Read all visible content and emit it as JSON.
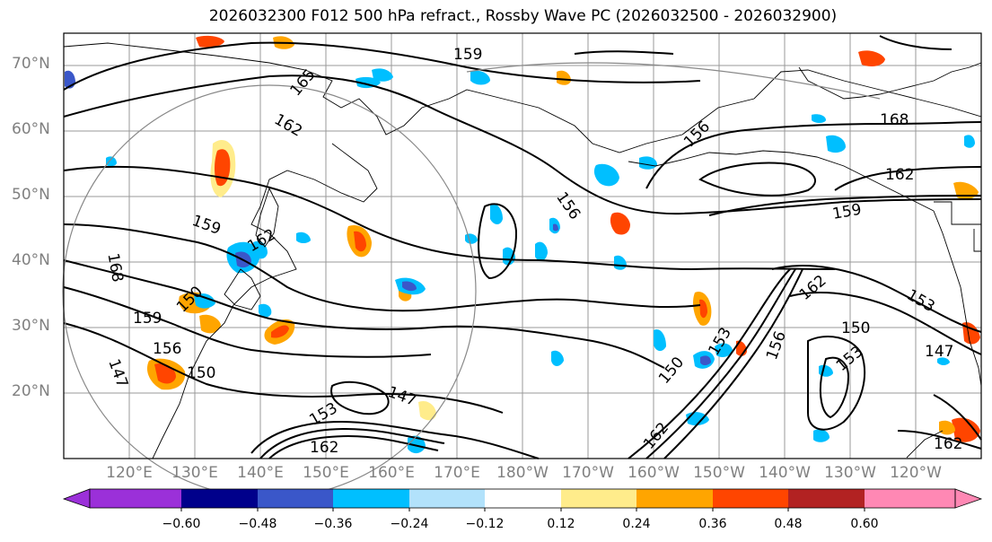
{
  "title": "2026032300 F012 500 hPa refract., Rossby Wave PC (2026032500 - 2026032900)",
  "lat_labels": [
    "70°N",
    "60°N",
    "50°N",
    "40°N",
    "30°N",
    "20°N"
  ],
  "lon_labels": [
    "120°E",
    "130°E",
    "140°E",
    "150°E",
    "160°E",
    "170°E",
    "180°W",
    "170°W",
    "160°W",
    "150°W",
    "140°W",
    "130°W",
    "120°W"
  ],
  "colorbar": {
    "labels": [
      "−0.60",
      "−0.48",
      "−0.36",
      "−0.24",
      "−0.12",
      "0.12",
      "0.24",
      "0.36",
      "0.48",
      "0.60"
    ],
    "colors": [
      "#9b30d9",
      "#00008b",
      "#3a57c9",
      "#00bfff",
      "#b2e2fb",
      "#ffffff",
      "#ffec8b",
      "#ffa500",
      "#ff4500",
      "#b22222",
      "#ff88b4"
    ]
  },
  "contour_labels": [
    "165",
    "159",
    "162",
    "168",
    "156",
    "159",
    "162",
    "159",
    "162",
    "159",
    "156",
    "150",
    "147",
    "162",
    "150",
    "153",
    "156",
    "162",
    "150",
    "153",
    "147",
    "153",
    "162",
    "168",
    "147",
    "156",
    "150",
    "162",
    "153"
  ],
  "colors": {
    "contour": "#000000",
    "coast": "#000000",
    "grid": "#999999",
    "axis_label": "#808080"
  }
}
